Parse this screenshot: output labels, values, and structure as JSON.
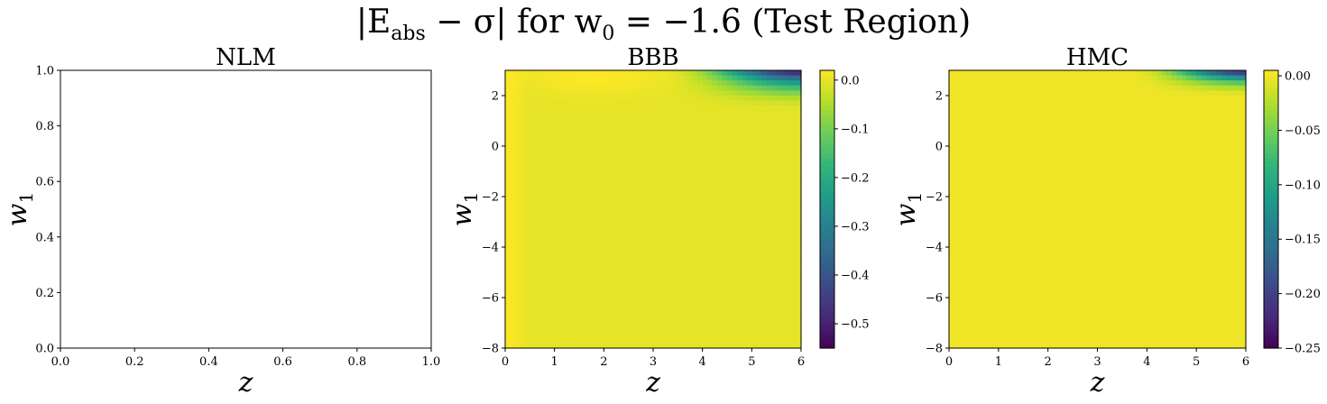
{
  "figure": {
    "title_prefix": "|E",
    "title_sub": "abs",
    "title_middle": " − σ| for w",
    "title_sub0": "0",
    "title_suffix": " = −1.6 (Test Region)"
  },
  "chart_data": [
    {
      "type": "heatmap",
      "title": "NLM",
      "xlabel": "z",
      "ylabel": "w1",
      "xlim": [
        0,
        1
      ],
      "ylim": [
        0,
        1
      ],
      "xticks": [
        "0.0",
        "0.2",
        "0.4",
        "0.6",
        "0.8",
        "1.0"
      ],
      "yticks": [
        "0.0",
        "0.2",
        "0.4",
        "0.6",
        "0.8",
        "1.0"
      ],
      "empty": true,
      "colorbar": null
    },
    {
      "type": "heatmap",
      "title": "BBB",
      "xlabel": "z",
      "ylabel": "w1",
      "xlim": [
        0,
        6
      ],
      "ylim": [
        -8,
        3
      ],
      "xticks": [
        "0",
        "1",
        "2",
        "3",
        "4",
        "5",
        "6"
      ],
      "yticks": [
        "−8",
        "−6",
        "−4",
        "−2",
        "0",
        "2"
      ],
      "colormap": "viridis",
      "colorbar": {
        "range": [
          -0.55,
          0.02
        ],
        "ticks": [
          0.0,
          -0.1,
          -0.2,
          -0.3,
          -0.4,
          -0.5
        ],
        "tick_labels": [
          "0.0",
          "−0.1",
          "−0.2",
          "−0.3",
          "−0.4",
          "−0.5"
        ]
      },
      "field": {
        "base": 0.0,
        "left_strip": {
          "z_max": 0.55,
          "value": 0.018
        },
        "top_blob": {
          "z_center": 1.8,
          "w1_center": 2.7,
          "value": 0.02
        },
        "corner_drop": {
          "z_start": 3.0,
          "w1_start": 1.2,
          "z_end": 6.0,
          "w1_end": 3.0,
          "min_value": -0.55
        }
      }
    },
    {
      "type": "heatmap",
      "title": "HMC",
      "xlabel": "z",
      "ylabel": "w1",
      "xlim": [
        0,
        6
      ],
      "ylim": [
        -8,
        3
      ],
      "xticks": [
        "0",
        "1",
        "2",
        "3",
        "4",
        "5",
        "6"
      ],
      "yticks": [
        "−8",
        "−6",
        "−4",
        "−2",
        "0",
        "2"
      ],
      "colormap": "viridis",
      "colorbar": {
        "range": [
          -0.25,
          0.005
        ],
        "ticks": [
          0.0,
          -0.05,
          -0.1,
          -0.15,
          -0.2,
          -0.25
        ],
        "tick_labels": [
          "0.00",
          "−0.05",
          "−0.10",
          "−0.15",
          "−0.20",
          "−0.25"
        ]
      },
      "field": {
        "base": 0.0,
        "corner_drop": {
          "z_start": 3.5,
          "w1_start": 1.8,
          "z_end": 6.0,
          "w1_end": 3.0,
          "min_value": -0.25
        }
      }
    }
  ]
}
